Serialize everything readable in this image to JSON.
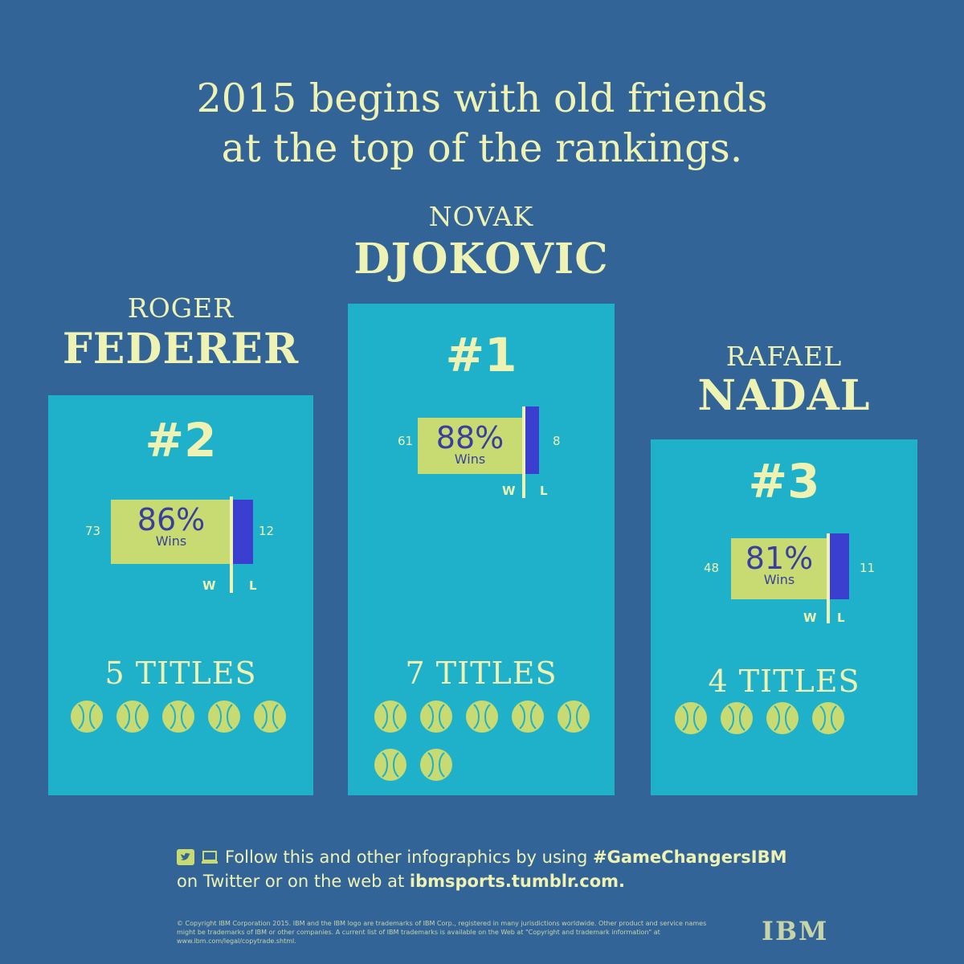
{
  "headline": {
    "line1": "2015 begins with old friends",
    "line2": "at the top of the rankings."
  },
  "players": {
    "federer": {
      "first": "ROGER",
      "last": "FEDERER",
      "rank": "#2",
      "wins": "73",
      "losses": "12",
      "pct": "86%",
      "pct_label": "Wins",
      "w": "W",
      "l": "L",
      "titles": "5 TITLES",
      "titles_count": 5,
      "win_fraction": 0.86
    },
    "djokovic": {
      "first": "NOVAK",
      "last": "DJOKOVIC",
      "rank": "#1",
      "wins": "61",
      "losses": "8",
      "pct": "88%",
      "pct_label": "Wins",
      "w": "W",
      "l": "L",
      "titles": "7 TITLES",
      "titles_count": 7,
      "win_fraction": 0.88
    },
    "nadal": {
      "first": "RAFAEL",
      "last": "NADAL",
      "rank": "#3",
      "wins": "48",
      "losses": "11",
      "pct": "81%",
      "pct_label": "Wins",
      "w": "W",
      "l": "L",
      "titles": "4 TITLES",
      "titles_count": 4,
      "win_fraction": 0.81
    }
  },
  "footer": {
    "text1": "Follow this and other infographics by using ",
    "hashtag": "#GameChangersIBM",
    "text2": "on Twitter or on the web at ",
    "url": "ibmsports.tumblr.com.",
    "icons": [
      "twitter-icon",
      "laptop-icon"
    ]
  },
  "copyright": "© Copyright IBM Corporation 2015. IBM and the IBM logo are trademarks of IBM Corp., registered in many jurisdictions worldwide. Other product and service names might be trademarks of IBM or other companies. A current list of IBM trademarks is available on the Web at \"Copyright and trademark information\" at www.ibm.com/legal/copytrade.shtml.",
  "logo": "IBM",
  "colors": {
    "background": "#336498",
    "panel": "#1fb0ca",
    "accent": "#c7db72",
    "loss": "#3b3fd0",
    "text": "#eef2b3"
  }
}
